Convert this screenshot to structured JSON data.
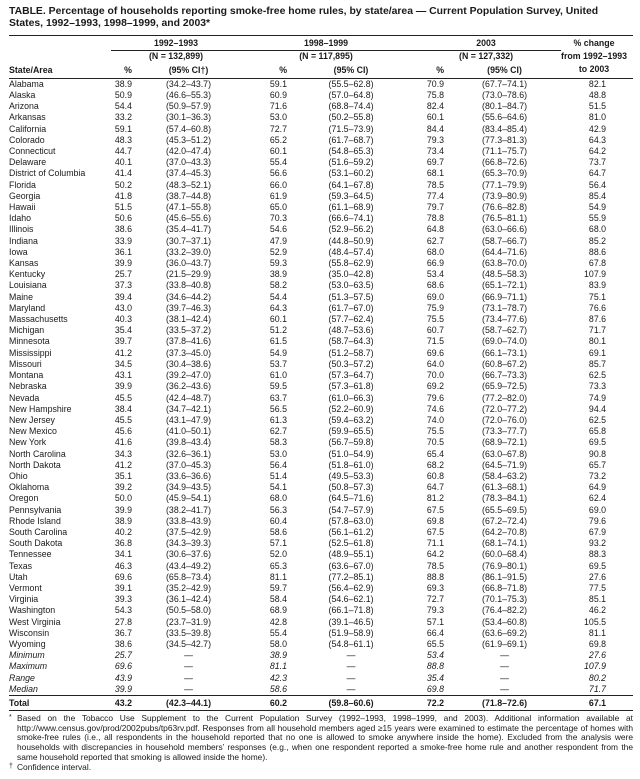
{
  "title": "TABLE. Percentage of households reporting smoke-free home rules, by state/area — Current Population Survey, United States, 1992–1993, 1998–1999, and 2003*",
  "table": {
    "state_header": "State/Area",
    "change_header_lines": [
      "% change",
      "from 1992–1993",
      "to 2003"
    ],
    "groups": [
      {
        "period": "1992–1993",
        "n": "(N = 132,899)",
        "pct_label": "%",
        "ci_label": "(95% CI†)"
      },
      {
        "period": "1998–1999",
        "n": "(N = 117,895)",
        "pct_label": "%",
        "ci_label": "(95% CI)"
      },
      {
        "period": "2003",
        "n": "(N = 127,332)",
        "pct_label": "%",
        "ci_label": "(95% CI)"
      }
    ],
    "rows": [
      {
        "area": "Alabama",
        "values": [
          "38.9",
          "(34.2–43.7)",
          "59.1",
          "(55.5–62.8)",
          "70.9",
          "(67.7–74.1)",
          "82.1"
        ]
      },
      {
        "area": "Alaska",
        "values": [
          "50.9",
          "(46.6–55.3)",
          "60.9",
          "(57.0–64.8)",
          "75.8",
          "(73.0–78.6)",
          "48.8"
        ]
      },
      {
        "area": "Arizona",
        "values": [
          "54.4",
          "(50.9–57.9)",
          "71.6",
          "(68.8–74.4)",
          "82.4",
          "(80.1–84.7)",
          "51.5"
        ]
      },
      {
        "area": "Arkansas",
        "values": [
          "33.2",
          "(30.1–36.3)",
          "53.0",
          "(50.2–55.8)",
          "60.1",
          "(55.6–64.6)",
          "81.0"
        ]
      },
      {
        "area": "California",
        "values": [
          "59.1",
          "(57.4–60.8)",
          "72.7",
          "(71.5–73.9)",
          "84.4",
          "(83.4–85.4)",
          "42.9"
        ]
      },
      {
        "area": "Colorado",
        "values": [
          "48.3",
          "(45.3–51.2)",
          "65.2",
          "(61.7–68.7)",
          "79.3",
          "(77.3–81.3)",
          "64.3"
        ]
      },
      {
        "area": "Connecticut",
        "values": [
          "44.7",
          "(42.0–47.4)",
          "60.1",
          "(54.8–65.3)",
          "73.4",
          "(71.1–75.7)",
          "64.2"
        ]
      },
      {
        "area": "Delaware",
        "values": [
          "40.1",
          "(37.0–43.3)",
          "55.4",
          "(51.6–59.2)",
          "69.7",
          "(66.8–72.6)",
          "73.7"
        ]
      },
      {
        "area": "District of Columbia",
        "values": [
          "41.4",
          "(37.4–45.3)",
          "56.6",
          "(53.1–60.2)",
          "68.1",
          "(65.3–70.9)",
          "64.7"
        ]
      },
      {
        "area": "Florida",
        "values": [
          "50.2",
          "(48.3–52.1)",
          "66.0",
          "(64.1–67.8)",
          "78.5",
          "(77.1–79.9)",
          "56.4"
        ]
      },
      {
        "area": "Georgia",
        "values": [
          "41.8",
          "(38.7–44.8)",
          "61.9",
          "(59.3–64.5)",
          "77.4",
          "(73.9–80.9)",
          "85.4"
        ]
      },
      {
        "area": "Hawaii",
        "values": [
          "51.5",
          "(47.1–55.8)",
          "65.0",
          "(61.1–68.9)",
          "79.7",
          "(76.6–82.8)",
          "54.9"
        ]
      },
      {
        "area": "Idaho",
        "values": [
          "50.6",
          "(45.6–55.6)",
          "70.3",
          "(66.6–74.1)",
          "78.8",
          "(76.5–81.1)",
          "55.9"
        ]
      },
      {
        "area": "Illinois",
        "values": [
          "38.6",
          "(35.4–41.7)",
          "54.6",
          "(52.9–56.2)",
          "64.8",
          "(63.0–66.6)",
          "68.0"
        ]
      },
      {
        "area": "Indiana",
        "values": [
          "33.9",
          "(30.7–37.1)",
          "47.9",
          "(44.8–50.9)",
          "62.7",
          "(58.7–66.7)",
          "85.2"
        ]
      },
      {
        "area": "Iowa",
        "values": [
          "36.1",
          "(33.2–39.0)",
          "52.9",
          "(48.4–57.4)",
          "68.0",
          "(64.4–71.6)",
          "88.6"
        ]
      },
      {
        "area": "Kansas",
        "values": [
          "39.9",
          "(36.0–43.7)",
          "59.3",
          "(55.8–62.9)",
          "66.9",
          "(63.8–70.0)",
          "67.8"
        ]
      },
      {
        "area": "Kentucky",
        "values": [
          "25.7",
          "(21.5–29.9)",
          "38.9",
          "(35.0–42.8)",
          "53.4",
          "(48.5–58.3)",
          "107.9"
        ]
      },
      {
        "area": "Louisiana",
        "values": [
          "37.3",
          "(33.8–40.8)",
          "58.2",
          "(53.0–63.5)",
          "68.6",
          "(65.1–72.1)",
          "83.9"
        ]
      },
      {
        "area": "Maine",
        "values": [
          "39.4",
          "(34.6–44.2)",
          "54.4",
          "(51.3–57.5)",
          "69.0",
          "(66.9–71.1)",
          "75.1"
        ]
      },
      {
        "area": "Maryland",
        "values": [
          "43.0",
          "(39.7–46.3)",
          "64.3",
          "(61.7–67.0)",
          "75.9",
          "(73.1–78.7)",
          "76.6"
        ]
      },
      {
        "area": "Massachusetts",
        "values": [
          "40.3",
          "(38.1–42.4)",
          "60.1",
          "(57.7–62.4)",
          "75.5",
          "(73.4–77.6)",
          "87.6"
        ]
      },
      {
        "area": "Michigan",
        "values": [
          "35.4",
          "(33.5–37.2)",
          "51.2",
          "(48.7–53.6)",
          "60.7",
          "(58.7–62.7)",
          "71.7"
        ]
      },
      {
        "area": "Minnesota",
        "values": [
          "39.7",
          "(37.8–41.6)",
          "61.5",
          "(58.7–64.3)",
          "71.5",
          "(69.0–74.0)",
          "80.1"
        ]
      },
      {
        "area": "Mississippi",
        "values": [
          "41.2",
          "(37.3–45.0)",
          "54.9",
          "(51.2–58.7)",
          "69.6",
          "(66.1–73.1)",
          "69.1"
        ]
      },
      {
        "area": "Missouri",
        "values": [
          "34.5",
          "(30.4–38.6)",
          "53.7",
          "(50.3–57.2)",
          "64.0",
          "(60.8–67.2)",
          "85.7"
        ]
      },
      {
        "area": "Montana",
        "values": [
          "43.1",
          "(39.2–47.0)",
          "61.0",
          "(57.3–64.7)",
          "70.0",
          "(66.7–73.3)",
          "62.5"
        ]
      },
      {
        "area": "Nebraska",
        "values": [
          "39.9",
          "(36.2–43.6)",
          "59.5",
          "(57.3–61.8)",
          "69.2",
          "(65.9–72.5)",
          "73.3"
        ]
      },
      {
        "area": "Nevada",
        "values": [
          "45.5",
          "(42.4–48.7)",
          "63.7",
          "(61.0–66.3)",
          "79.6",
          "(77.2–82.0)",
          "74.9"
        ]
      },
      {
        "area": "New Hampshire",
        "values": [
          "38.4",
          "(34.7–42.1)",
          "56.5",
          "(52.2–60.9)",
          "74.6",
          "(72.0–77.2)",
          "94.4"
        ]
      },
      {
        "area": "New Jersey",
        "values": [
          "45.5",
          "(43.1–47.9)",
          "61.3",
          "(59.4–63.2)",
          "74.0",
          "(72.0–76.0)",
          "62.5"
        ]
      },
      {
        "area": "New Mexico",
        "values": [
          "45.6",
          "(41.0–50.1)",
          "62.7",
          "(59.9–65.5)",
          "75.5",
          "(73.3–77.7)",
          "65.8"
        ]
      },
      {
        "area": "New York",
        "values": [
          "41.6",
          "(39.8–43.4)",
          "58.3",
          "(56.7–59.8)",
          "70.5",
          "(68.9–72.1)",
          "69.5"
        ]
      },
      {
        "area": "North Carolina",
        "values": [
          "34.3",
          "(32.6–36.1)",
          "53.0",
          "(51.0–54.9)",
          "65.4",
          "(63.0–67.8)",
          "90.8"
        ]
      },
      {
        "area": "North Dakota",
        "values": [
          "41.2",
          "(37.0–45.3)",
          "56.4",
          "(51.8–61.0)",
          "68.2",
          "(64.5–71.9)",
          "65.7"
        ]
      },
      {
        "area": "Ohio",
        "values": [
          "35.1",
          "(33.6–36.6)",
          "51.4",
          "(49.5–53.3)",
          "60.8",
          "(58.4–63.2)",
          "73.2"
        ]
      },
      {
        "area": "Oklahoma",
        "values": [
          "39.2",
          "(34.9–43.5)",
          "54.1",
          "(50.8–57.3)",
          "64.7",
          "(61.3–68.1)",
          "64.9"
        ]
      },
      {
        "area": "Oregon",
        "values": [
          "50.0",
          "(45.9–54.1)",
          "68.0",
          "(64.5–71.6)",
          "81.2",
          "(78.3–84.1)",
          "62.4"
        ]
      },
      {
        "area": "Pennsylvania",
        "values": [
          "39.9",
          "(38.2–41.7)",
          "56.3",
          "(54.7–57.9)",
          "67.5",
          "(65.5–69.5)",
          "69.0"
        ]
      },
      {
        "area": "Rhode Island",
        "values": [
          "38.9",
          "(33.8–43.9)",
          "60.4",
          "(57.8–63.0)",
          "69.8",
          "(67.2–72.4)",
          "79.6"
        ]
      },
      {
        "area": "South Carolina",
        "values": [
          "40.2",
          "(37.5–42.9)",
          "58.6",
          "(56.1–61.2)",
          "67.5",
          "(64.2–70.8)",
          "67.9"
        ]
      },
      {
        "area": "South Dakota",
        "values": [
          "36.8",
          "(34.3–39.3)",
          "57.1",
          "(52.5–61.8)",
          "71.1",
          "(68.1–74.1)",
          "93.2"
        ]
      },
      {
        "area": "Tennessee",
        "values": [
          "34.1",
          "(30.6–37.6)",
          "52.0",
          "(48.9–55.1)",
          "64.2",
          "(60.0–68.4)",
          "88.3"
        ]
      },
      {
        "area": "Texas",
        "values": [
          "46.3",
          "(43.4–49.2)",
          "65.3",
          "(63.6–67.0)",
          "78.5",
          "(76.9–80.1)",
          "69.5"
        ]
      },
      {
        "area": "Utah",
        "values": [
          "69.6",
          "(65.8–73.4)",
          "81.1",
          "(77.2–85.1)",
          "88.8",
          "(86.1–91.5)",
          "27.6"
        ]
      },
      {
        "area": "Vermont",
        "values": [
          "39.1",
          "(35.2–42.9)",
          "59.7",
          "(56.4–62.9)",
          "69.3",
          "(66.8–71.8)",
          "77.5"
        ]
      },
      {
        "area": "Virginia",
        "values": [
          "39.3",
          "(36.1–42.4)",
          "58.4",
          "(54.6–62.1)",
          "72.7",
          "(70.1–75.3)",
          "85.1"
        ]
      },
      {
        "area": "Washington",
        "values": [
          "54.3",
          "(50.5–58.0)",
          "68.9",
          "(66.1–71.8)",
          "79.3",
          "(76.4–82.2)",
          "46.2"
        ]
      },
      {
        "area": "West Virginia",
        "values": [
          "27.8",
          "(23.7–31.9)",
          "42.8",
          "(39.1–46.5)",
          "57.1",
          "(53.4–60.8)",
          "105.5"
        ]
      },
      {
        "area": "Wisconsin",
        "values": [
          "36.7",
          "(33.5–39.8)",
          "55.4",
          "(51.9–58.9)",
          "66.4",
          "(63.6–69.2)",
          "81.1"
        ]
      },
      {
        "area": "Wyoming",
        "values": [
          "38.6",
          "(34.5–42.7)",
          "58.0",
          "(54.8–61.1)",
          "65.5",
          "(61.9–69.1)",
          "69.8"
        ]
      }
    ],
    "summary_rows": [
      {
        "area": "Minimum",
        "values": [
          "25.7",
          "—",
          "38.9",
          "—",
          "53.4",
          "—",
          "27.6"
        ]
      },
      {
        "area": "Maximum",
        "values": [
          "69.6",
          "—",
          "81.1",
          "—",
          "88.8",
          "—",
          "107.9"
        ]
      },
      {
        "area": "Range",
        "values": [
          "43.9",
          "—",
          "42.3",
          "—",
          "35.4",
          "—",
          "80.2"
        ]
      },
      {
        "area": "Median",
        "values": [
          "39.9",
          "—",
          "58.6",
          "—",
          "69.8",
          "—",
          "71.7"
        ]
      }
    ],
    "total_row": {
      "area": "Total",
      "values": [
        "43.2",
        "(42.3–44.1)",
        "60.2",
        "(59.8–60.6)",
        "72.2",
        "(71.8–72.6)",
        "67.1"
      ]
    }
  },
  "footnotes": [
    {
      "marker": "*",
      "text": "Based on the Tobacco Use Supplement to the Current Population Survey (1992–1993, 1998–1999, and 2003). Additional information available at http://www.census.gov/prod/2002pubs/tp63rv.pdf. Responses from all household members aged ≥15 years were examined to estimate the percentage of homes with smoke-free rules (i.e., all respondents in the household reported that no one is allowed to smoke anywhere inside the home). Excluded from the analysis were households with discrepancies in household members’ responses (e.g., when one respondent reported a smoke-free home rule and another respondent from the same household reported that smoking is allowed inside the home)."
    },
    {
      "marker": "†",
      "text": "Confidence interval."
    }
  ]
}
